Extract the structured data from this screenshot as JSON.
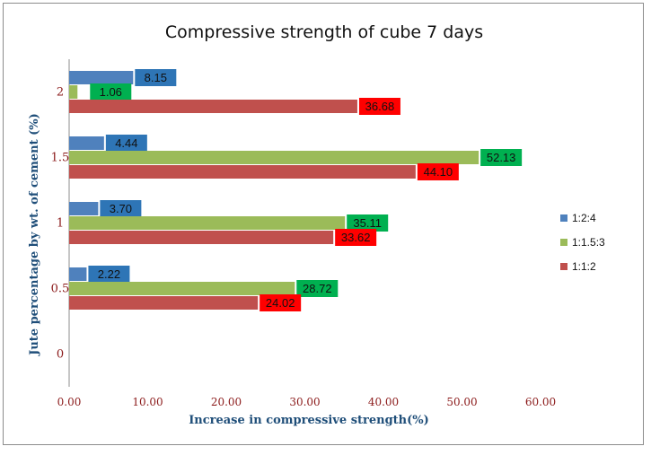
{
  "chart_data": {
    "type": "bar",
    "orientation": "horizontal",
    "title": "Compressive strength of cube 7 days",
    "xlabel": "Increase in compressive strength(%)",
    "ylabel": "Jute percentage by wt. of cement (%)",
    "categories": [
      "0",
      "0.5",
      "1",
      "1.5",
      "2"
    ],
    "x_ticks": [
      "0.00",
      "10.00",
      "20.00",
      "30.00",
      "40.00",
      "50.00",
      "60.00"
    ],
    "xlim": [
      0,
      60
    ],
    "grid": false,
    "legend_position": "right",
    "series": [
      {
        "name": "1:2:4",
        "color": "#4f81bd",
        "label_color": "#2e75b6",
        "values": [
          null,
          2.22,
          3.7,
          4.44,
          8.15
        ],
        "labels": [
          "",
          "2.22",
          "3.70",
          "4.44",
          "8.15"
        ]
      },
      {
        "name": "1:1.5:3",
        "color": "#9bbb59",
        "label_color": "#00b050",
        "values": [
          null,
          28.72,
          35.11,
          52.13,
          1.06
        ],
        "labels": [
          "",
          "28.72",
          "35.11",
          "52.13",
          "1.06"
        ]
      },
      {
        "name": "1:1:2",
        "color": "#c0504d",
        "label_color": "#ff0000",
        "values": [
          null,
          24.02,
          33.62,
          44.1,
          36.68
        ],
        "labels": [
          "",
          "24.02",
          "33.62",
          "44.10",
          "36.68"
        ]
      }
    ]
  }
}
